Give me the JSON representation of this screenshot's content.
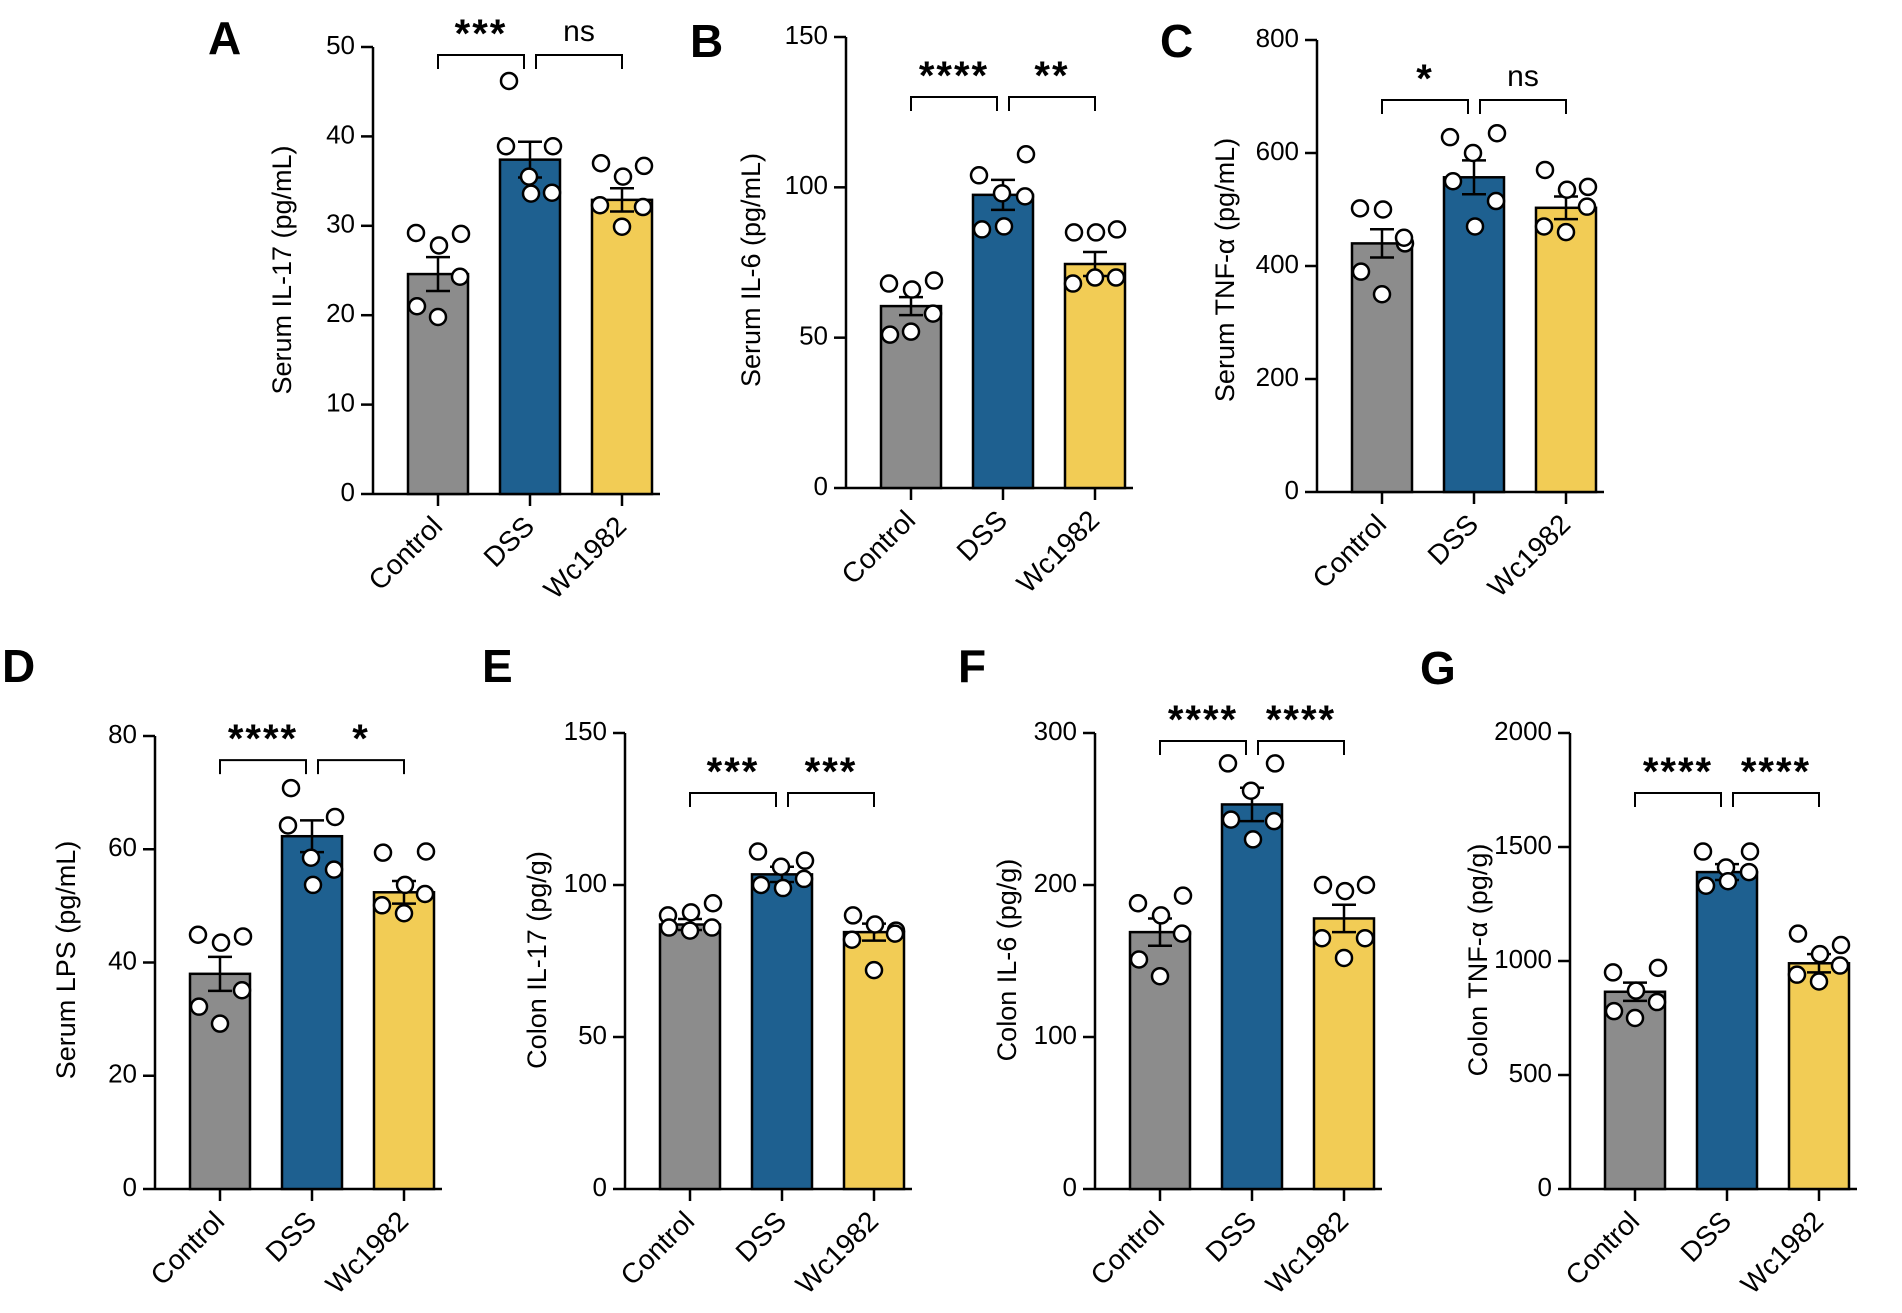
{
  "colors": {
    "Control": "#8c8c8c",
    "DSS": "#1e6090",
    "Wc1982": "#f2cc55",
    "text": "#000000",
    "background": "#ffffff"
  },
  "chart_data": [
    {
      "panel": "A",
      "type": "bar",
      "categories": [
        "Control",
        "DSS",
        "Wc1982"
      ],
      "ylabel": "Serum IL-17 (pg/mL)",
      "ylim": [
        0,
        50
      ],
      "yticks": [
        0,
        10,
        20,
        30,
        40,
        50
      ],
      "means": [
        24.6,
        37.4,
        32.9
      ],
      "sem": [
        1.9,
        2.0,
        1.3
      ],
      "points": [
        [
          29.2,
          27.8,
          29.1,
          21.0,
          19.8,
          24.3
        ],
        [
          38.9,
          35.5,
          38.9,
          46.2,
          33.6,
          33.7
        ],
        [
          37.0,
          35.5,
          36.7,
          32.3,
          29.9,
          32.1
        ]
      ],
      "significance": [
        {
          "from": 0,
          "to": 1,
          "label": "***"
        },
        {
          "from": 1,
          "to": 2,
          "label": "ns"
        }
      ]
    },
    {
      "panel": "B",
      "type": "bar",
      "categories": [
        "Control",
        "DSS",
        "Wc1982"
      ],
      "ylabel": "Serum IL-6 (pg/mL)",
      "ylim": [
        0,
        150
      ],
      "yticks": [
        0,
        50,
        100,
        150
      ],
      "means": [
        60.5,
        97.5,
        74.5
      ],
      "sem": [
        3.0,
        5.0,
        4.0
      ],
      "points": [
        [
          68,
          66,
          69,
          51,
          52,
          58
        ],
        [
          104,
          98,
          111,
          86,
          87,
          97
        ],
        [
          85,
          85,
          86,
          68,
          70,
          70
        ]
      ],
      "significance": [
        {
          "from": 0,
          "to": 1,
          "label": "****"
        },
        {
          "from": 1,
          "to": 2,
          "label": "**"
        }
      ]
    },
    {
      "panel": "C",
      "type": "bar",
      "categories": [
        "Control",
        "DSS",
        "Wc1982"
      ],
      "ylabel": "Serum TNF-α (pg/mL)",
      "ylim": [
        0,
        800
      ],
      "yticks": [
        0,
        200,
        400,
        600,
        800
      ],
      "means": [
        440,
        557,
        503
      ],
      "sem": [
        25,
        30,
        20
      ],
      "points": [
        [
          502,
          500,
          440,
          390,
          350,
          450
        ],
        [
          628,
          600,
          635,
          550,
          470,
          515
        ],
        [
          570,
          535,
          540,
          470,
          460,
          505
        ]
      ],
      "significance": [
        {
          "from": 0,
          "to": 1,
          "label": "*"
        },
        {
          "from": 1,
          "to": 2,
          "label": "ns"
        }
      ]
    },
    {
      "panel": "D",
      "type": "bar",
      "categories": [
        "Control",
        "DSS",
        "Wc1982"
      ],
      "ylabel": "Serum LPS (pg/mL)",
      "ylim": [
        0,
        80
      ],
      "yticks": [
        0,
        20,
        40,
        60,
        80
      ],
      "means": [
        38.0,
        62.3,
        52.4
      ],
      "sem": [
        3.0,
        2.8,
        2.0
      ],
      "points": [
        [
          44.9,
          43.5,
          44.6,
          32.2,
          29.2,
          35.1
        ],
        [
          64.2,
          58.5,
          65.7,
          70.8,
          53.7,
          56.4
        ],
        [
          59.4,
          53.7,
          59.6,
          50.1,
          48.7,
          52.1
        ]
      ],
      "significance": [
        {
          "from": 0,
          "to": 1,
          "label": "****"
        },
        {
          "from": 1,
          "to": 2,
          "label": "*"
        }
      ]
    },
    {
      "panel": "E",
      "type": "bar",
      "categories": [
        "Control",
        "DSS",
        "Wc1982"
      ],
      "ylabel": "Colon IL-17 (pg/g)",
      "ylim": [
        0,
        150
      ],
      "yticks": [
        0,
        50,
        100,
        150
      ],
      "means": [
        87,
        103.5,
        84.5
      ],
      "sem": [
        1.8,
        2.5,
        2.8
      ],
      "points": [
        [
          90,
          91,
          94,
          86,
          85,
          86
        ],
        [
          111,
          106,
          108,
          100,
          99,
          102
        ],
        [
          90,
          87,
          85,
          82,
          72,
          84
        ]
      ],
      "significance": [
        {
          "from": 0,
          "to": 1,
          "label": "***"
        },
        {
          "from": 1,
          "to": 2,
          "label": "***"
        }
      ]
    },
    {
      "panel": "F",
      "type": "bar",
      "categories": [
        "Control",
        "DSS",
        "Wc1982"
      ],
      "ylabel": "Colon IL-6 (pg/g)",
      "ylim": [
        0,
        300
      ],
      "yticks": [
        0,
        100,
        200,
        300
      ],
      "means": [
        169,
        253,
        178
      ],
      "sem": [
        9,
        11,
        9
      ],
      "points": [
        [
          188,
          180,
          193,
          151,
          140,
          168
        ],
        [
          280,
          262,
          280,
          243,
          230,
          242
        ],
        [
          200,
          196,
          200,
          165,
          152,
          165
        ]
      ],
      "significance": [
        {
          "from": 0,
          "to": 1,
          "label": "****"
        },
        {
          "from": 1,
          "to": 2,
          "label": "****"
        }
      ]
    },
    {
      "panel": "G",
      "type": "bar",
      "categories": [
        "Control",
        "DSS",
        "Wc1982"
      ],
      "ylabel": "Colon TNF-α (pg/g)",
      "ylim": [
        0,
        2000
      ],
      "yticks": [
        0,
        500,
        1000,
        1500,
        2000
      ],
      "means": [
        865,
        1390,
        990
      ],
      "sem": [
        40,
        35,
        40
      ],
      "points": [
        [
          950,
          870,
          970,
          780,
          750,
          820
        ],
        [
          1480,
          1410,
          1480,
          1330,
          1350,
          1390
        ],
        [
          1120,
          1030,
          1070,
          940,
          910,
          980
        ]
      ],
      "significance": [
        {
          "from": 0,
          "to": 1,
          "label": "****"
        },
        {
          "from": 1,
          "to": 2,
          "label": "****"
        }
      ]
    }
  ]
}
